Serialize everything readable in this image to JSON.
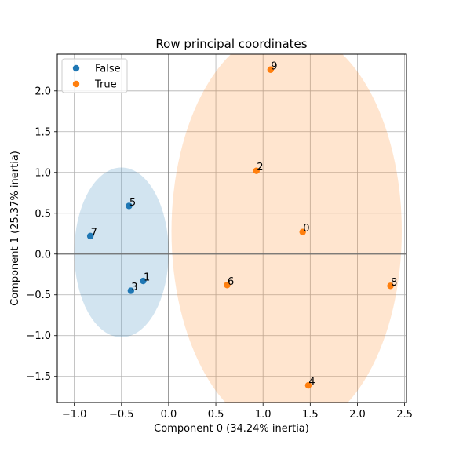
{
  "chart_data": {
    "type": "scatter",
    "title": "Row principal coordinates",
    "xlabel": "Component 0 (34.24% inertia)",
    "ylabel": "Component 1 (25.37% inertia)",
    "xlim": [
      -1.18,
      2.52
    ],
    "ylim": [
      -1.82,
      2.45
    ],
    "xticks": [
      -1.0,
      -0.5,
      0.0,
      0.5,
      1.0,
      1.5,
      2.0,
      2.5
    ],
    "xtick_labels": [
      "−1.0",
      "−0.5",
      "0.0",
      "0.5",
      "1.0",
      "1.5",
      "2.0",
      "2.5"
    ],
    "yticks": [
      -1.5,
      -1.0,
      -0.5,
      0.0,
      0.5,
      1.0,
      1.5,
      2.0
    ],
    "ytick_labels": [
      "−1.5",
      "−1.0",
      "−0.5",
      "0.0",
      "0.5",
      "1.0",
      "1.5",
      "2.0"
    ],
    "grid": true,
    "legend_position": "top-left",
    "series": [
      {
        "name": "False",
        "color": "#1f77b4",
        "ellipse": {
          "cx": -0.5,
          "cy": 0.02,
          "rx": 0.5,
          "ry": 1.04,
          "fill": "#1f77b4",
          "opacity": 0.2
        },
        "points": [
          {
            "label": "1",
            "x": -0.27,
            "y": -0.33
          },
          {
            "label": "3",
            "x": -0.4,
            "y": -0.45
          },
          {
            "label": "5",
            "x": -0.42,
            "y": 0.59
          },
          {
            "label": "7",
            "x": -0.83,
            "y": 0.22
          }
        ]
      },
      {
        "name": "True",
        "color": "#ff7f0e",
        "ellipse": {
          "cx": 1.25,
          "cy": 0.28,
          "rx": 1.22,
          "ry": 2.48,
          "fill": "#ff7f0e",
          "opacity": 0.2
        },
        "points": [
          {
            "label": "0",
            "x": 1.42,
            "y": 0.27
          },
          {
            "label": "2",
            "x": 0.93,
            "y": 1.02
          },
          {
            "label": "4",
            "x": 1.48,
            "y": -1.61
          },
          {
            "label": "6",
            "x": 0.62,
            "y": -0.38
          },
          {
            "label": "8",
            "x": 2.35,
            "y": -0.39
          },
          {
            "label": "9",
            "x": 1.08,
            "y": 2.26
          }
        ]
      }
    ]
  }
}
